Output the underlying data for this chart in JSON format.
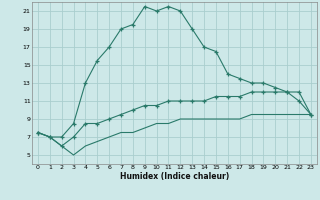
{
  "xlabel": "Humidex (Indice chaleur)",
  "bg_color": "#cde8e8",
  "grid_color": "#aacece",
  "line_color": "#2a7a6a",
  "x_values": [
    0,
    1,
    2,
    3,
    4,
    5,
    6,
    7,
    8,
    9,
    10,
    11,
    12,
    13,
    14,
    15,
    16,
    17,
    18,
    19,
    20,
    21,
    22,
    23
  ],
  "line1": [
    7.5,
    7.0,
    7.0,
    8.5,
    13.0,
    15.5,
    17.0,
    19.0,
    19.5,
    21.5,
    21.0,
    21.5,
    21.0,
    19.0,
    17.0,
    16.5,
    14.0,
    13.5,
    13.0,
    13.0,
    12.5,
    12.0,
    11.0,
    9.5
  ],
  "line2": [
    7.5,
    7.0,
    6.0,
    7.0,
    8.5,
    8.5,
    9.0,
    9.5,
    10.0,
    10.5,
    10.5,
    11.0,
    11.0,
    11.0,
    11.0,
    11.5,
    11.5,
    11.5,
    12.0,
    12.0,
    12.0,
    12.0,
    12.0,
    9.5
  ],
  "line3": [
    7.5,
    7.0,
    6.0,
    5.0,
    6.0,
    6.5,
    7.0,
    7.5,
    7.5,
    8.0,
    8.5,
    8.5,
    9.0,
    9.0,
    9.0,
    9.0,
    9.0,
    9.0,
    9.5,
    9.5,
    9.5,
    9.5,
    9.5,
    9.5
  ],
  "xlim": [
    -0.5,
    23.5
  ],
  "ylim": [
    4,
    22
  ],
  "yticks": [
    5,
    7,
    9,
    11,
    13,
    15,
    17,
    19,
    21
  ],
  "xticks": [
    0,
    1,
    2,
    3,
    4,
    5,
    6,
    7,
    8,
    9,
    10,
    11,
    12,
    13,
    14,
    15,
    16,
    17,
    18,
    19,
    20,
    21,
    22,
    23
  ]
}
